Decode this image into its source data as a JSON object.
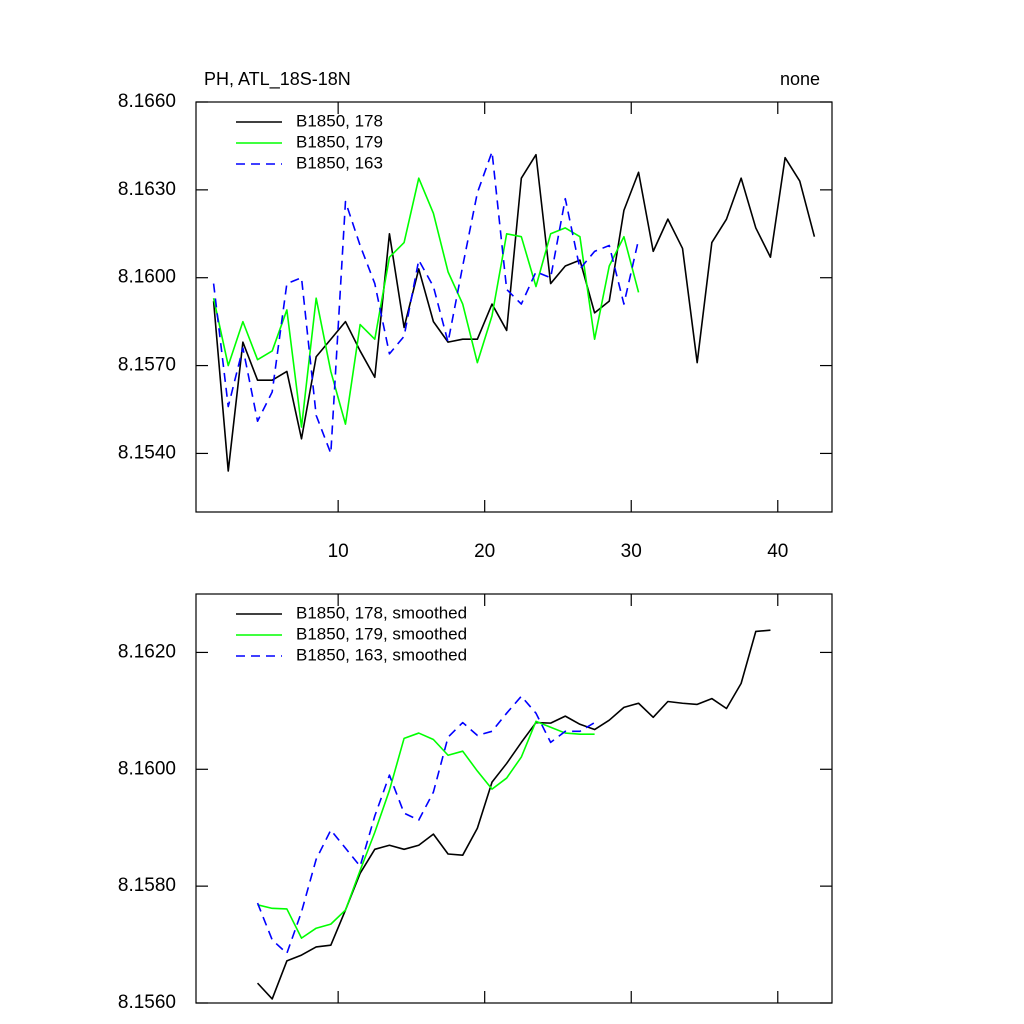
{
  "chart_data": [
    {
      "type": "line",
      "title": "PH, ATL_18S-18N",
      "right_title": "none",
      "xlim": [
        0.3,
        43.7
      ],
      "xticks": [
        10,
        20,
        30,
        40
      ],
      "ylim": [
        8.152,
        8.166
      ],
      "yticks": [
        {
          "value": 8.154,
          "label": "8.1540"
        },
        {
          "value": 8.157,
          "label": "8.1570"
        },
        {
          "value": 8.16,
          "label": "8.1600"
        },
        {
          "value": 8.163,
          "label": "8.1630"
        },
        {
          "value": 8.166,
          "label": "8.1660"
        }
      ],
      "series": [
        {
          "name": "B1850, 178",
          "color": "#000000",
          "style": "solid",
          "x": [
            1.5,
            2.5,
            3.5,
            4.5,
            5.5,
            6.5,
            7.5,
            8.5,
            9.5,
            10.5,
            11.5,
            12.5,
            13.5,
            14.5,
            15.5,
            16.5,
            17.5,
            18.5,
            19.5,
            20.5,
            21.5,
            22.5,
            23.5,
            24.5,
            25.5,
            26.5,
            27.5,
            28.5,
            29.5,
            30.5,
            31.5,
            32.5,
            33.5,
            34.5,
            35.5,
            36.5,
            37.5,
            38.5,
            39.5,
            40.5,
            41.5,
            42.5
          ],
          "values": [
            8.1592,
            8.1534,
            8.1578,
            8.1565,
            8.1565,
            8.1568,
            8.1545,
            8.1573,
            8.1579,
            8.1585,
            8.1575,
            8.1566,
            8.1615,
            8.1583,
            8.1603,
            8.1585,
            8.1578,
            8.1579,
            8.1579,
            8.1591,
            8.1582,
            8.1634,
            8.1642,
            8.1598,
            8.1604,
            8.1606,
            8.1588,
            8.1592,
            8.1623,
            8.1636,
            8.1609,
            8.162,
            8.161,
            8.1571,
            8.1612,
            8.162,
            8.1634,
            8.1617,
            8.1607,
            8.1641,
            8.1633,
            8.1614
          ]
        },
        {
          "name": "B1850, 179",
          "color": "#00ff00",
          "style": "solid",
          "x": [
            1.5,
            2.5,
            3.5,
            4.5,
            5.5,
            6.5,
            7.5,
            8.5,
            9.5,
            10.5,
            11.5,
            12.5,
            13.5,
            14.5,
            15.5,
            16.5,
            17.5,
            18.5,
            19.5,
            20.5,
            21.5,
            22.5,
            23.5,
            24.5,
            25.5,
            26.5,
            27.5,
            28.5,
            29.5,
            30.5
          ],
          "values": [
            8.1593,
            8.157,
            8.1585,
            8.1572,
            8.1575,
            8.1589,
            8.1549,
            8.1593,
            8.1568,
            8.155,
            8.1584,
            8.1579,
            8.1607,
            8.1612,
            8.1634,
            8.1622,
            8.1602,
            8.1591,
            8.1571,
            8.1587,
            8.1615,
            8.1614,
            8.1597,
            8.1615,
            8.1617,
            8.1614,
            8.1579,
            8.1604,
            8.1614,
            8.1595
          ]
        },
        {
          "name": "B1850, 163",
          "color": "#0000ff",
          "style": "dashed",
          "x": [
            1.5,
            2.5,
            3.5,
            4.5,
            5.5,
            6.5,
            7.5,
            8.5,
            9.5,
            10.5,
            11.5,
            12.5,
            13.5,
            14.5,
            15.5,
            16.5,
            17.5,
            18.5,
            19.5,
            20.5,
            21.5,
            22.5,
            23.5,
            24.5,
            25.5,
            26.5,
            27.5,
            28.5,
            29.5,
            30.5
          ],
          "values": [
            8.1598,
            8.1556,
            8.1576,
            8.1551,
            8.1561,
            8.1598,
            8.16,
            8.1553,
            8.154,
            8.1626,
            8.1611,
            8.1598,
            8.1574,
            8.158,
            8.1606,
            8.1597,
            8.1578,
            8.1604,
            8.1629,
            8.1643,
            8.1596,
            8.1591,
            8.1602,
            8.16,
            8.1627,
            8.1603,
            8.1609,
            8.1611,
            8.1591,
            8.1613
          ]
        }
      ]
    },
    {
      "type": "line",
      "xlim": [
        0.3,
        43.7
      ],
      "xticks": [
        10,
        20,
        30,
        40
      ],
      "ylim": [
        8.156,
        8.163
      ],
      "yticks": [
        {
          "value": 8.156,
          "label": "8.1560"
        },
        {
          "value": 8.158,
          "label": "8.1580"
        },
        {
          "value": 8.16,
          "label": "8.1600"
        },
        {
          "value": 8.162,
          "label": "8.1620"
        }
      ],
      "series": [
        {
          "name": "B1850, 178, smoothed",
          "color": "#000000",
          "style": "solid",
          "x": [
            4.5,
            5.5,
            6.5,
            7.5,
            8.5,
            9.5,
            10.5,
            11.5,
            12.5,
            13.5,
            14.5,
            15.5,
            16.5,
            17.5,
            18.5,
            19.5,
            20.5,
            21.5,
            22.5,
            23.5,
            24.5,
            25.5,
            26.5,
            27.5,
            28.5,
            29.5,
            30.5,
            31.5,
            32.5,
            33.5,
            34.5,
            35.5,
            36.5,
            37.5,
            38.5,
            39.5
          ],
          "values": [
            8.15634,
            8.15607,
            8.15672,
            8.15682,
            8.15696,
            8.15699,
            8.15759,
            8.15822,
            8.15863,
            8.1587,
            8.15863,
            8.1587,
            8.15889,
            8.15855,
            8.15853,
            8.15899,
            8.15978,
            8.1601,
            8.16046,
            8.1608,
            8.16079,
            8.16091,
            8.16077,
            8.16068,
            8.16084,
            8.16106,
            8.16113,
            8.16089,
            8.16116,
            8.16113,
            8.16111,
            8.16121,
            8.16104,
            8.16147,
            8.16236,
            8.16238
          ]
        },
        {
          "name": "B1850, 179, smoothed",
          "color": "#00ff00",
          "style": "solid",
          "x": [
            4.5,
            5.5,
            6.5,
            7.5,
            8.5,
            9.5,
            10.5,
            11.5,
            12.5,
            13.5,
            14.5,
            15.5,
            16.5,
            17.5,
            18.5,
            19.5,
            20.5,
            21.5,
            22.5,
            23.5,
            24.5,
            25.5,
            26.5,
            27.5
          ],
          "values": [
            8.15768,
            8.15762,
            8.15761,
            8.15711,
            8.15728,
            8.15735,
            8.15759,
            8.15827,
            8.15892,
            8.15964,
            8.16053,
            8.16062,
            8.16051,
            8.16024,
            8.16031,
            8.15997,
            8.15966,
            8.15985,
            8.16021,
            8.16082,
            8.16072,
            8.16062,
            8.1606,
            8.1606
          ]
        },
        {
          "name": "B1850, 163, smoothed",
          "color": "#0000ff",
          "style": "dashed",
          "x": [
            4.5,
            5.5,
            6.5,
            7.5,
            8.5,
            9.5,
            10.5,
            11.5,
            12.5,
            13.5,
            14.5,
            15.5,
            16.5,
            17.5,
            18.5,
            19.5,
            20.5,
            21.5,
            22.5,
            23.5,
            24.5,
            25.5,
            26.5,
            27.5
          ],
          "values": [
            8.15771,
            8.15708,
            8.15685,
            8.15756,
            8.15846,
            8.15896,
            8.15865,
            8.15834,
            8.1592,
            8.1599,
            8.15925,
            8.15913,
            8.15961,
            8.16055,
            8.1608,
            8.16058,
            8.16065,
            8.16096,
            8.16125,
            8.16096,
            8.16046,
            8.16065,
            8.16065,
            8.1608
          ]
        }
      ]
    }
  ]
}
